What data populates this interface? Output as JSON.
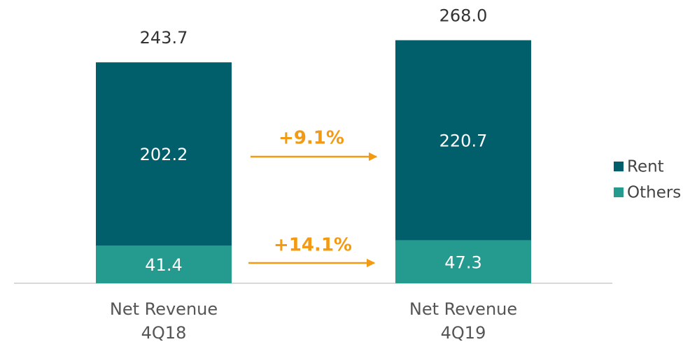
{
  "chart_data": {
    "type": "stacked_bar",
    "categories": [
      [
        "Net Revenue",
        "4Q18"
      ],
      [
        "Net Revenue",
        "4Q19"
      ]
    ],
    "series": [
      {
        "name": "Others",
        "color": "#259a8e",
        "values": [
          41.4,
          47.3
        ]
      },
      {
        "name": "Rent",
        "color": "#005f6b",
        "values": [
          202.2,
          220.7
        ]
      }
    ],
    "totals": [
      243.7,
      268.0
    ],
    "total_labels": [
      "243.7",
      "268.0"
    ],
    "annotations": [
      "+9.1%",
      "+14.1%"
    ],
    "annotation_color": "#f39a12",
    "legend": "right"
  }
}
